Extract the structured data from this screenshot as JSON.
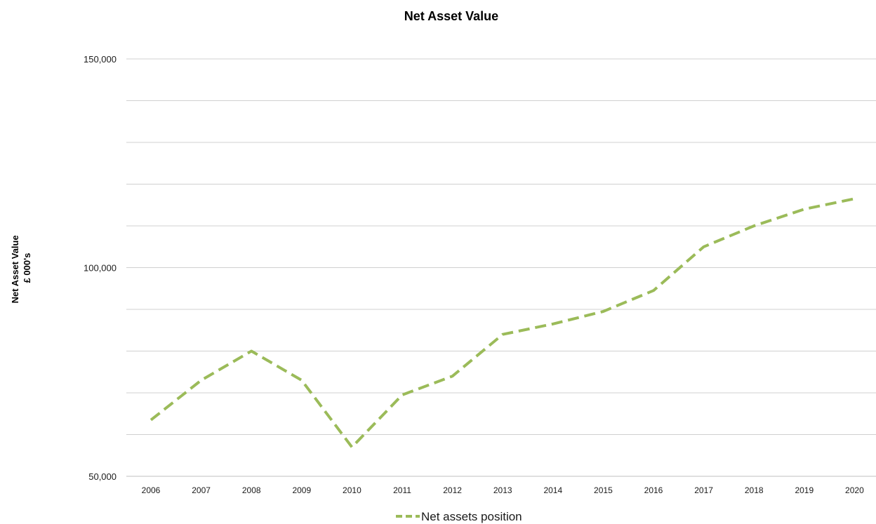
{
  "chart_data": {
    "type": "line",
    "title": "Net Asset Value",
    "ylabel_lines": [
      "Net Asset Value",
      "£ 000's"
    ],
    "xlabel": "",
    "ylim": [
      50000,
      150000
    ],
    "y_gridlines": [
      50000,
      60000,
      70000,
      80000,
      90000,
      100000,
      110000,
      120000,
      130000,
      140000,
      150000
    ],
    "y_tick_labels": [
      {
        "value": 50000,
        "label": "50,000"
      },
      {
        "value": 100000,
        "label": "100,000"
      },
      {
        "value": 150000,
        "label": "150,000"
      }
    ],
    "categories": [
      "2006",
      "2007",
      "2008",
      "2009",
      "2010",
      "2011",
      "2012",
      "2013",
      "2014",
      "2015",
      "2016",
      "2017",
      "2018",
      "2019",
      "2020"
    ],
    "series": [
      {
        "name": "Net assets position",
        "color": "#9BBB59",
        "style": "dashed",
        "values": [
          63500,
          73000,
          80000,
          73000,
          57000,
          69500,
          74000,
          84000,
          86500,
          89500,
          94500,
          105000,
          110000,
          114000,
          116500
        ]
      }
    ],
    "grid": true,
    "legend": "bottom-center"
  }
}
